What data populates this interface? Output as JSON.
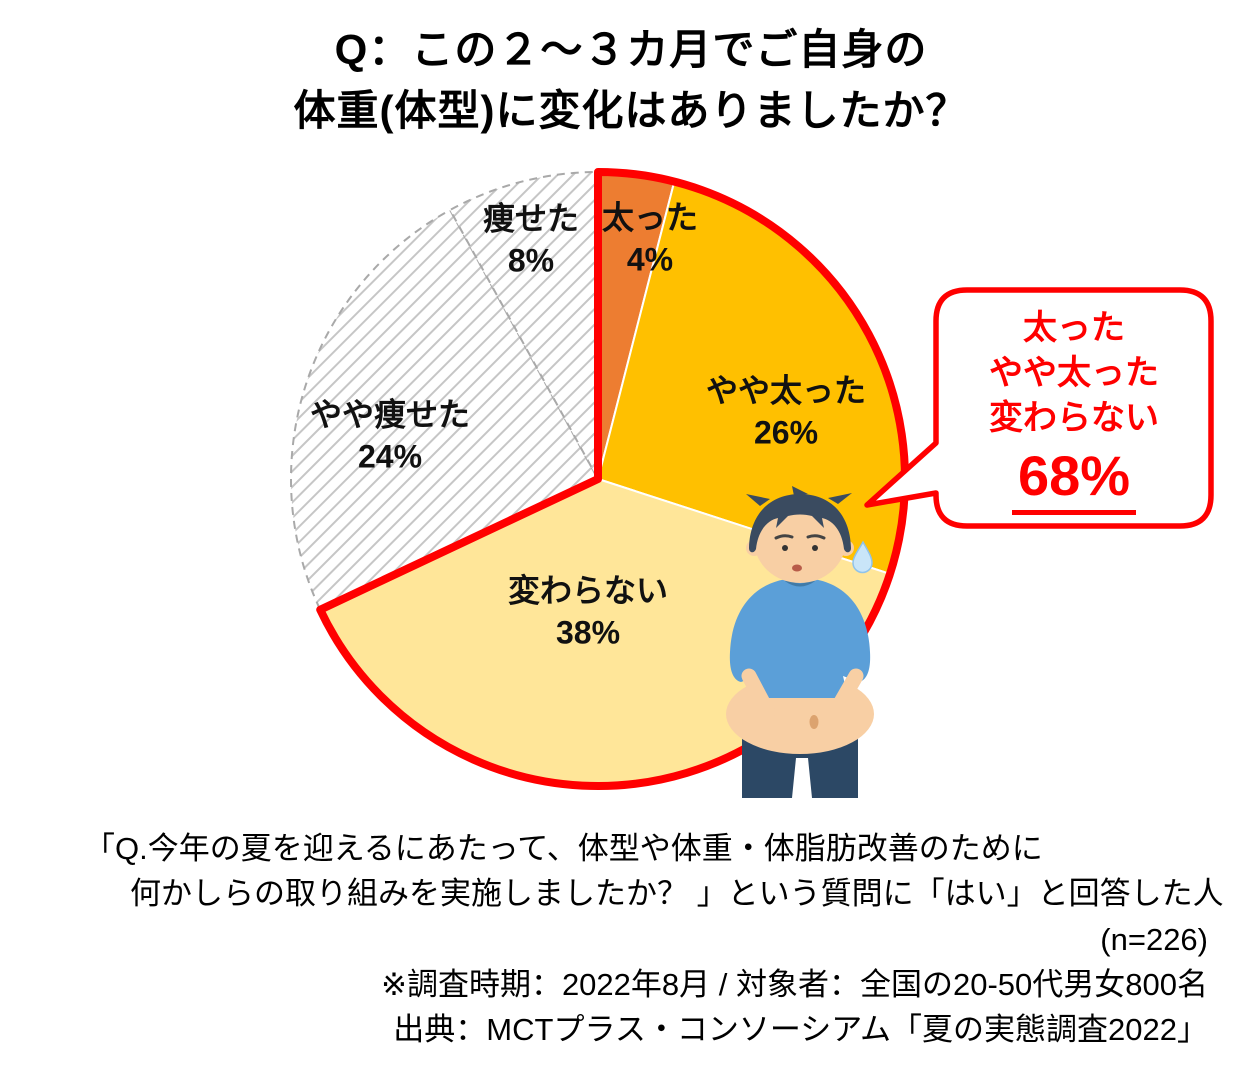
{
  "title": {
    "line1": "Q：この２～３カ月でご自身の",
    "line2": "体重(体型)に変化はありましたか？"
  },
  "chart_data": {
    "type": "pie",
    "title": "Q：この２～３カ月でご自身の体重(体型)に変化はありましたか？",
    "unit": "%",
    "start_angle_deg": 0,
    "direction": "clockwise",
    "slices": [
      {
        "label": "太った",
        "value": 4,
        "pct_text": "4%",
        "fill": "#ED7D31",
        "pattern": "solid",
        "highlighted": true
      },
      {
        "label": "やや太った",
        "value": 26,
        "pct_text": "26%",
        "fill": "#FFC000",
        "pattern": "solid",
        "highlighted": true
      },
      {
        "label": "変わらない",
        "value": 38,
        "pct_text": "38%",
        "fill": "#FFE699",
        "pattern": "solid",
        "highlighted": true
      },
      {
        "label": "やや痩せた",
        "value": 24,
        "pct_text": "24%",
        "fill": "#FFFFFF",
        "pattern": "diagonal-hatch",
        "highlighted": false
      },
      {
        "label": "痩せた",
        "value": 8,
        "pct_text": "8%",
        "fill": "#FFFFFF",
        "pattern": "diagonal-hatch",
        "highlighted": false
      }
    ],
    "highlight": {
      "outline_color": "#FF0000",
      "callout_lines": [
        "太った",
        "やや太った",
        "変わらない"
      ],
      "callout_total": "68%"
    }
  },
  "footer": {
    "lines": [
      "「Q.今年の夏を迎えるにあたって、体型や体重・体脂肪改善のために",
      "何かしらの取り組みを実施しましたか？ 」という質問に「はい」と回答した人",
      "(n=226)",
      "※調査時期：2022年8月 / 対象者：全国の20-50代男女800名",
      "出典：MCTプラス・コンソーシアム「夏の実態調査2022」"
    ]
  }
}
